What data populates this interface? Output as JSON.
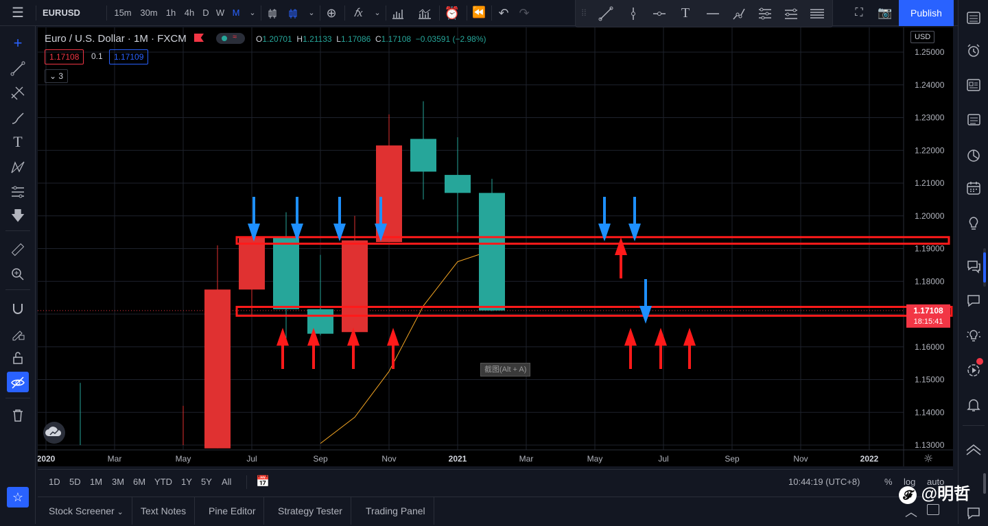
{
  "toolbar": {
    "symbol": "EURUSD",
    "timeframes": [
      "15m",
      "30m",
      "1h",
      "4h",
      "D",
      "W",
      "M"
    ],
    "active_timeframe": "M",
    "publish_label": "Publish"
  },
  "legend": {
    "title": "Euro / U.S. Dollar · 1M · FXCM",
    "open_label": "O",
    "open": "1.20701",
    "high_label": "H",
    "high": "1.21133",
    "low_label": "L",
    "low": "1.17086",
    "close_label": "C",
    "close": "1.17108",
    "change": "−0.03591 (−2.98%)",
    "bid": "1.17108",
    "spread": "0.1",
    "ask": "1.17109",
    "indicators_count": "3"
  },
  "price_axis": {
    "currency": "USD",
    "ticks": [
      "1.25000",
      "1.24000",
      "1.23000",
      "1.22000",
      "1.21000",
      "1.20000",
      "1.19000",
      "1.18000",
      "1.17000",
      "1.16000",
      "1.15000",
      "1.14000",
      "1.13000"
    ],
    "current_price": "1.17108",
    "countdown": "18:15:41"
  },
  "time_axis": {
    "ticks": [
      "2020",
      "Mar",
      "May",
      "Jul",
      "Sep",
      "Nov",
      "2021",
      "Mar",
      "May",
      "Jul",
      "Sep",
      "Nov",
      "2022"
    ]
  },
  "chart_data": {
    "type": "candlestick",
    "y_range": [
      1.129,
      1.2535
    ],
    "candles": [
      {
        "month": "2020-02",
        "open": 1.13,
        "high": 1.149,
        "low": 1.13,
        "close": 1.13,
        "color": "up"
      },
      {
        "month": "2020-05",
        "open": 1.13,
        "high": 1.142,
        "low": 1.13,
        "close": 1.13,
        "color": "down"
      },
      {
        "month": "2020-06",
        "open": 1.1775,
        "high": 1.191,
        "low": 1.129,
        "close": 1.129,
        "color": "down"
      },
      {
        "month": "2020-07",
        "open": 1.1775,
        "high": 1.1965,
        "low": 1.1695,
        "close": 1.1935,
        "color": "down"
      },
      {
        "month": "2020-08",
        "open": 1.1935,
        "high": 1.2011,
        "low": 1.1625,
        "close": 1.1715,
        "color": "up"
      },
      {
        "month": "2020-09",
        "open": 1.1715,
        "high": 1.1881,
        "low": 1.1635,
        "close": 1.164,
        "color": "up"
      },
      {
        "month": "2020-10",
        "open": 1.1925,
        "high": 1.2,
        "low": 1.1645,
        "close": 1.1645,
        "color": "down"
      },
      {
        "month": "2020-11",
        "open": 1.2215,
        "high": 1.231,
        "low": 1.192,
        "close": 1.192,
        "color": "down"
      },
      {
        "month": "2020-12",
        "open": 1.2235,
        "high": 1.235,
        "low": 1.205,
        "close": 1.2135,
        "color": "up"
      },
      {
        "month": "2021-01",
        "open": 1.2125,
        "high": 1.224,
        "low": 1.195,
        "close": 1.207,
        "color": "up"
      },
      {
        "month": "2021-02",
        "open": 1.207,
        "high": 1.2113,
        "low": 1.1709,
        "close": 1.1711,
        "color": "up"
      }
    ],
    "ma": [
      {
        "month": "2020-09",
        "value": 1.1305
      },
      {
        "month": "2020-10",
        "value": 1.1385
      },
      {
        "month": "2020-11",
        "value": 1.1525
      },
      {
        "month": "2020-12",
        "value": 1.1725
      },
      {
        "month": "2021-01",
        "value": 1.186
      },
      {
        "month": "2021-02",
        "value": 1.1895
      }
    ],
    "zones": [
      {
        "from": 1.1915,
        "to": 1.1935
      },
      {
        "from": 1.1695,
        "to": 1.1722
      }
    ]
  },
  "bottom": {
    "ranges": [
      "1D",
      "5D",
      "1M",
      "3M",
      "6M",
      "YTD",
      "1Y",
      "5Y",
      "All"
    ],
    "clock": "10:44:19 (UTC+8)",
    "percent": "%",
    "log": "log",
    "auto": "auto"
  },
  "tooltip": "截图(Alt + A)",
  "panel_tabs": [
    "Stock Screener",
    "Text Notes",
    "Pine Editor",
    "Strategy Tester",
    "Trading Panel"
  ],
  "watermark": "@明哲"
}
